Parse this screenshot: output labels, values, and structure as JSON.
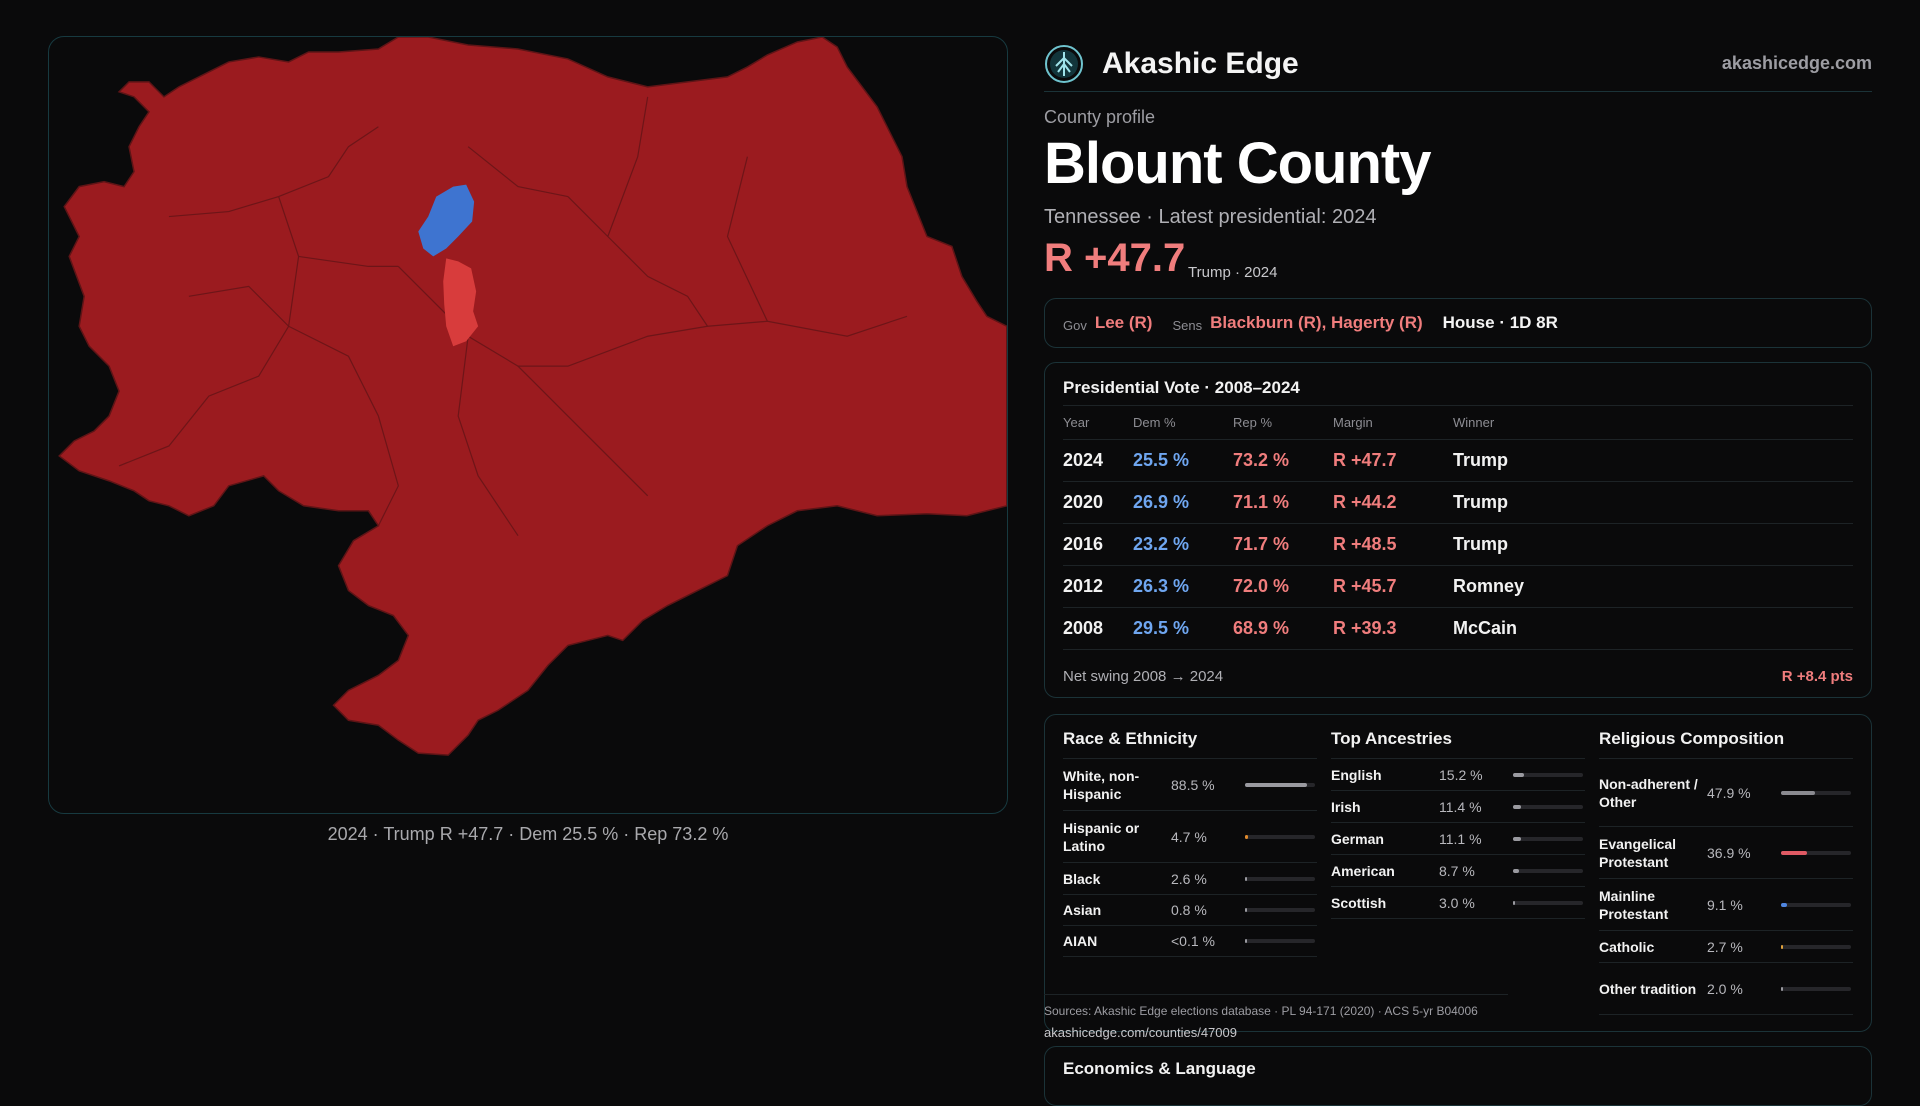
{
  "map": {
    "caption": "2024 · Trump R +47.7 · Dem 25.5 % · Rep 73.2 %",
    "colors": {
      "rep_dark": "#9b1b1f",
      "rep_light": "#d83c3c",
      "dem": "#3e74d0"
    }
  },
  "brand": {
    "name": "Akashic Edge",
    "site": "akashicedge.com",
    "logo_icon": "tree-of-life-icon"
  },
  "profile": {
    "eyebrow": "County profile",
    "title": "Blount County",
    "subtitle": "Tennessee · Latest presidential: 2024",
    "margin": "R +47.7",
    "margin_sub": "Trump · 2024"
  },
  "officials": {
    "gov_label": "Gov",
    "gov": "Lee (R)",
    "sens_label": "Sens",
    "sens": "Blackburn (R), Hagerty (R)",
    "house": "House · 1D 8R"
  },
  "presidential": {
    "title": "Presidential Vote · 2008–2024",
    "headers": [
      "Year",
      "Dem %",
      "Rep %",
      "Margin",
      "Winner"
    ],
    "rows": [
      {
        "year": "2024",
        "dem": "25.5 %",
        "rep": "73.2 %",
        "margin": "R +47.7",
        "winner": "Trump"
      },
      {
        "year": "2020",
        "dem": "26.9 %",
        "rep": "71.1 %",
        "margin": "R +44.2",
        "winner": "Trump"
      },
      {
        "year": "2016",
        "dem": "23.2 %",
        "rep": "71.7 %",
        "margin": "R +48.5",
        "winner": "Trump"
      },
      {
        "year": "2012",
        "dem": "26.3 %",
        "rep": "72.0 %",
        "margin": "R +45.7",
        "winner": "Romney"
      },
      {
        "year": "2008",
        "dem": "29.5 %",
        "rep": "68.9 %",
        "margin": "R +39.3",
        "winner": "McCain"
      }
    ],
    "swing_label": "Net swing 2008 → 2024",
    "swing_value": "R +8.4 pts"
  },
  "race": {
    "title": "Race & Ethnicity",
    "rows": [
      {
        "label": "White, non-Hispanic",
        "value": "88.5 %",
        "pct": 88.5,
        "color": "#9a9aa0"
      },
      {
        "label": "Hispanic or Latino",
        "value": "4.7 %",
        "pct": 4.7,
        "color": "#e08a2c"
      },
      {
        "label": "Black",
        "value": "2.6 %",
        "pct": 2.6,
        "color": "#9a9aa0"
      },
      {
        "label": "Asian",
        "value": "0.8 %",
        "pct": 0.8,
        "color": "#9a9aa0"
      },
      {
        "label": "AIAN",
        "value": "<0.1 %",
        "pct": 0.05,
        "color": "#9a9aa0"
      }
    ]
  },
  "ancestry": {
    "title": "Top Ancestries",
    "rows": [
      {
        "label": "English",
        "value": "15.2 %",
        "pct": 15.2,
        "color": "#9a9aa0"
      },
      {
        "label": "Irish",
        "value": "11.4 %",
        "pct": 11.4,
        "color": "#9a9aa0"
      },
      {
        "label": "German",
        "value": "11.1 %",
        "pct": 11.1,
        "color": "#9a9aa0"
      },
      {
        "label": "American",
        "value": "8.7 %",
        "pct": 8.7,
        "color": "#9a9aa0"
      },
      {
        "label": "Scottish",
        "value": "3.0 %",
        "pct": 3.0,
        "color": "#9a9aa0"
      }
    ]
  },
  "religion": {
    "title": "Religious Composition",
    "rows": [
      {
        "label": "Non-adherent / Other",
        "value": "47.9 %",
        "pct": 47.9,
        "color": "#8a8a90"
      },
      {
        "label": "Evangelical Protestant",
        "value": "36.9 %",
        "pct": 36.9,
        "color": "#e05a64"
      },
      {
        "label": "Mainline Protestant",
        "value": "9.1 %",
        "pct": 9.1,
        "color": "#4f86e0"
      },
      {
        "label": "Catholic",
        "value": "2.7 %",
        "pct": 2.7,
        "color": "#e0a23c"
      },
      {
        "label": "Other tradition",
        "value": "2.0 %",
        "pct": 2.0,
        "color": "#9a9aa0"
      }
    ]
  },
  "sources": {
    "text": "Sources: Akashic Edge elections database · PL 94-171 (2020) · ACS 5-yr B04006",
    "url": "akashicedge.com/counties/47009"
  },
  "econ": {
    "title": "Economics & Language"
  }
}
